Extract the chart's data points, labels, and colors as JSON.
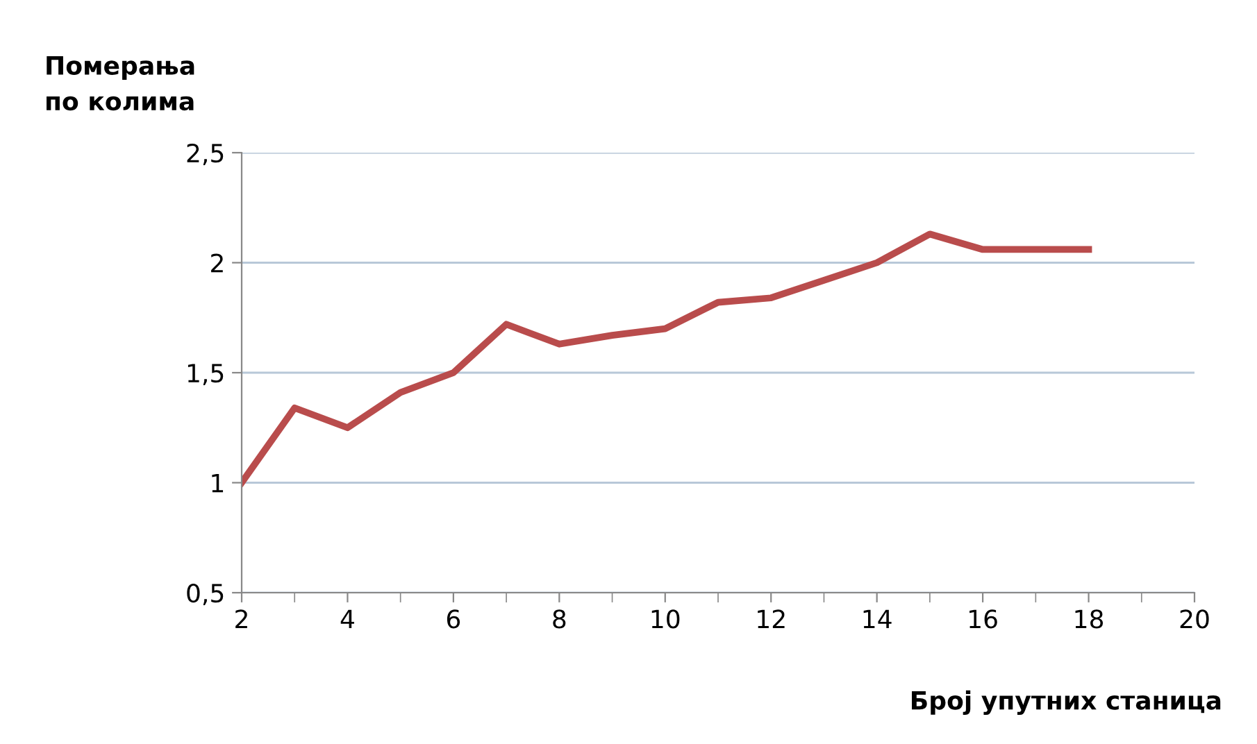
{
  "chart_data": {
    "type": "line",
    "ylabel": "Померања\nпо колима",
    "xlabel": "Број упутних станица",
    "x": [
      2,
      3,
      4,
      5,
      6,
      7,
      8,
      9,
      10,
      11,
      12,
      13,
      14,
      15,
      16,
      17,
      18
    ],
    "series": [
      {
        "color": "#b94c4c",
        "values": [
          1.0,
          1.34,
          1.25,
          1.41,
          1.5,
          1.72,
          1.63,
          1.67,
          1.7,
          1.82,
          1.84,
          1.92,
          2.0,
          2.13,
          2.06,
          2.06,
          2.06
        ]
      }
    ],
    "xlim": [
      2,
      20
    ],
    "xticks": [
      2,
      4,
      6,
      8,
      10,
      12,
      14,
      16,
      18,
      20
    ],
    "ylim": [
      0.5,
      2.5
    ],
    "yticks": [
      {
        "value": 0.5,
        "label": "0,5"
      },
      {
        "value": 1,
        "label": "1"
      },
      {
        "value": 1.5,
        "label": "1,5"
      },
      {
        "value": 2,
        "label": "2"
      },
      {
        "value": 2.5,
        "label": "2,5"
      }
    ],
    "grid": "y",
    "marker": "none",
    "line_style": "solid"
  }
}
